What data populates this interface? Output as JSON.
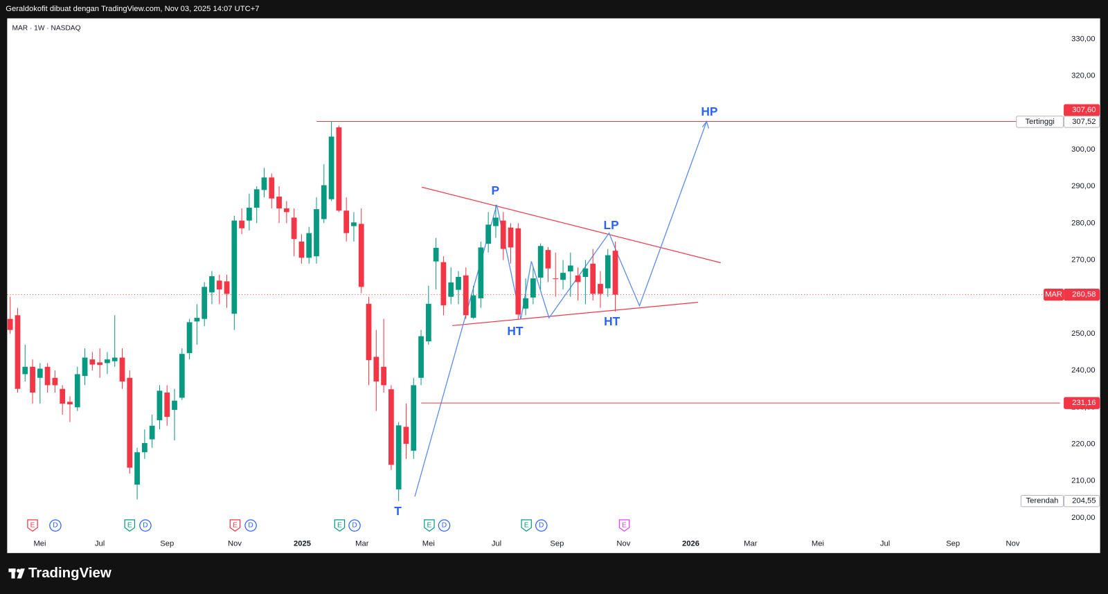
{
  "header": {
    "title": "Geraldokofit dibuat dengan TradingView.com, Nov 03, 2025 14:07 UTC+7",
    "brand": "TradingView"
  },
  "chart_data": {
    "type": "candlestick",
    "title": "MAR · 1W · NASDAQ",
    "up_color": "#089981",
    "down_color": "#f23645",
    "open": [
      254,
      255,
      239,
      241,
      238,
      241,
      238,
      235,
      231.5,
      230,
      238.5,
      243,
      242.2,
      242,
      242.5,
      243.5,
      238,
      209,
      217.8,
      221.3,
      226.5,
      234,
      229.3,
      232.6,
      244.7,
      253.3,
      254,
      261.2,
      264.4,
      264.2,
      255.4,
      280.7,
      280.7,
      284.2,
      289,
      292.4,
      287.2,
      284,
      281.5,
      275,
      270.6,
      271,
      281.1,
      286.5,
      306,
      283.4,
      279.2,
      279.8,
      258.1,
      243.7,
      241,
      234.9,
      207.7,
      224.7,
      218.2,
      238,
      247.9,
      269.6,
      269.4,
      260,
      261.9,
      265.8,
      254.3,
      259.6,
      274.4,
      279.2,
      280.7,
      278.8,
      278.6,
      256.8,
      259.8,
      265.2,
      272.7,
      265,
      264.6,
      266.9,
      265.8,
      265.4,
      269,
      263.5,
      262.3,
      272.5
    ],
    "high": [
      260,
      257,
      247,
      243,
      242,
      242,
      240,
      236,
      233,
      241,
      246,
      245,
      246,
      245,
      255,
      246,
      240,
      219,
      224,
      228,
      236,
      236,
      235,
      246,
      254,
      258,
      264,
      267,
      266,
      266,
      282,
      284,
      288,
      290,
      295,
      293.5,
      290,
      286,
      284,
      277,
      279,
      287,
      296,
      307.52,
      306.5,
      287,
      283,
      284,
      260,
      251,
      254,
      236,
      226,
      231,
      238,
      251,
      263,
      276,
      271,
      268,
      267,
      268,
      263,
      275,
      283,
      285,
      283,
      280,
      280,
      265,
      268,
      274.5,
      273.5,
      272,
      270,
      272,
      268,
      270,
      273,
      267,
      273,
      275
    ],
    "low": [
      250,
      234,
      237,
      231,
      231,
      234,
      234,
      228,
      226,
      229,
      236,
      240,
      238,
      239,
      241,
      235,
      212,
      205,
      216,
      219,
      224,
      225,
      221,
      232,
      243,
      247,
      252,
      258,
      258,
      257,
      251,
      277,
      278,
      280,
      287,
      284,
      280,
      280,
      271,
      269,
      269,
      269,
      280,
      286,
      283,
      275,
      275,
      261,
      236,
      229,
      234,
      213,
      204.55,
      216,
      216,
      236,
      247,
      262,
      255,
      258,
      258,
      254,
      254,
      257,
      272,
      276,
      270,
      269,
      254,
      255,
      258,
      262,
      264,
      260,
      262,
      260,
      259,
      258,
      259,
      257,
      260,
      256
    ],
    "close": [
      251,
      235,
      241,
      234,
      240.5,
      236,
      236,
      231,
      230.8,
      239,
      243.5,
      241.6,
      241.5,
      243,
      243.5,
      237,
      213.6,
      217.8,
      220.3,
      225,
      234.5,
      227.4,
      231.8,
      244.5,
      253.1,
      254.3,
      262.7,
      265.6,
      262,
      260.8,
      280.7,
      278.6,
      284.2,
      289.2,
      292.4,
      286.7,
      284,
      283,
      275.7,
      270.6,
      277.3,
      283.8,
      290.3,
      303.5,
      283.4,
      277.3,
      280.2,
      262.7,
      242.8,
      237,
      236,
      214.4,
      225.1,
      220.1,
      236,
      249.3,
      258.1,
      273.3,
      257.7,
      263.9,
      265.4,
      255,
      260.4,
      273.4,
      279.6,
      281.5,
      273,
      273.4,
      255.2,
      259.6,
      265,
      273.8,
      267.7,
      264.8,
      266.5,
      268.5,
      264,
      267.7,
      260.8,
      260.8,
      271.3,
      260.58
    ],
    "xlim": [
      -0.4,
      140.5
    ],
    "xticks": [
      {
        "value": 3.97,
        "label": "Mei"
      },
      {
        "value": 12.0,
        "label": "Jul"
      },
      {
        "value": 21.0,
        "label": "Sep"
      },
      {
        "value": 30.06,
        "label": "Nov"
      },
      {
        "value": 39.1,
        "label": "2025"
      },
      {
        "value": 47.1,
        "label": "Mar"
      },
      {
        "value": 56.0,
        "label": "Mei"
      },
      {
        "value": 65.1,
        "label": "Jul"
      },
      {
        "value": 73.2,
        "label": "Sep"
      },
      {
        "value": 82.1,
        "label": "Nov"
      },
      {
        "value": 91.1,
        "label": "2026"
      },
      {
        "value": 99.1,
        "label": "Mar"
      },
      {
        "value": 108.1,
        "label": "Mei"
      },
      {
        "value": 117.1,
        "label": "Jul"
      },
      {
        "value": 126.2,
        "label": "Sep"
      },
      {
        "value": 134.2,
        "label": "Nov"
      }
    ],
    "ylim": [
      195.8,
      335.6
    ],
    "yticks": [
      {
        "value": 200,
        "label": "200,00"
      },
      {
        "value": 210,
        "label": "210,00"
      },
      {
        "value": 220,
        "label": "220,00"
      },
      {
        "value": 230,
        "label": "230,00"
      },
      {
        "value": 240,
        "label": "240,00"
      },
      {
        "value": 250,
        "label": "250,00"
      },
      {
        "value": 260,
        "label": "260,00"
      },
      {
        "value": 270,
        "label": "270,00"
      },
      {
        "value": 280,
        "label": "280,00"
      },
      {
        "value": 290,
        "label": "290,00"
      },
      {
        "value": 300,
        "label": "300,00"
      },
      {
        "value": 310,
        "label": "310,00"
      },
      {
        "value": 320,
        "label": "320,00"
      },
      {
        "value": 330,
        "label": "330,00"
      }
    ],
    "grid": false,
    "price_labels": [
      {
        "value": 307.6,
        "label": "307,60",
        "color": "#f23645"
      },
      {
        "name": "Tertinggi",
        "value": 307.52,
        "label": "307,52",
        "color": "#ffffff"
      },
      {
        "name": "MAR",
        "value": 260.58,
        "label": "260,58",
        "color": "#f23645"
      },
      {
        "value": 231.16,
        "label": "231,16",
        "color": "#f23645"
      },
      {
        "name": "Terendah",
        "value": 204.55,
        "label": "204,55",
        "color": "#ffffff"
      }
    ],
    "events": [
      {
        "x": 3.0,
        "label": "E",
        "color": "#f23645"
      },
      {
        "x": 6.05,
        "label": "D",
        "color": "#2962ff"
      },
      {
        "x": 16.0,
        "label": "E",
        "color": "#089981"
      },
      {
        "x": 18.1,
        "label": "D",
        "color": "#2962ff"
      },
      {
        "x": 30.1,
        "label": "E",
        "color": "#f23645"
      },
      {
        "x": 32.2,
        "label": "D",
        "color": "#2962ff"
      },
      {
        "x": 44.1,
        "label": "E",
        "color": "#089981"
      },
      {
        "x": 46.1,
        "label": "D",
        "color": "#2962ff"
      },
      {
        "x": 56.1,
        "label": "E",
        "color": "#089981"
      },
      {
        "x": 58.1,
        "label": "D",
        "color": "#2962ff"
      },
      {
        "x": 69.1,
        "label": "E",
        "color": "#089981"
      },
      {
        "x": 71.1,
        "label": "D",
        "color": "#2962ff"
      },
      {
        "x": 82.2,
        "label": "E",
        "color": "#e040fb"
      }
    ],
    "annotations": [
      "P",
      "HT",
      "LP",
      "HT",
      "HP",
      "T"
    ]
  }
}
